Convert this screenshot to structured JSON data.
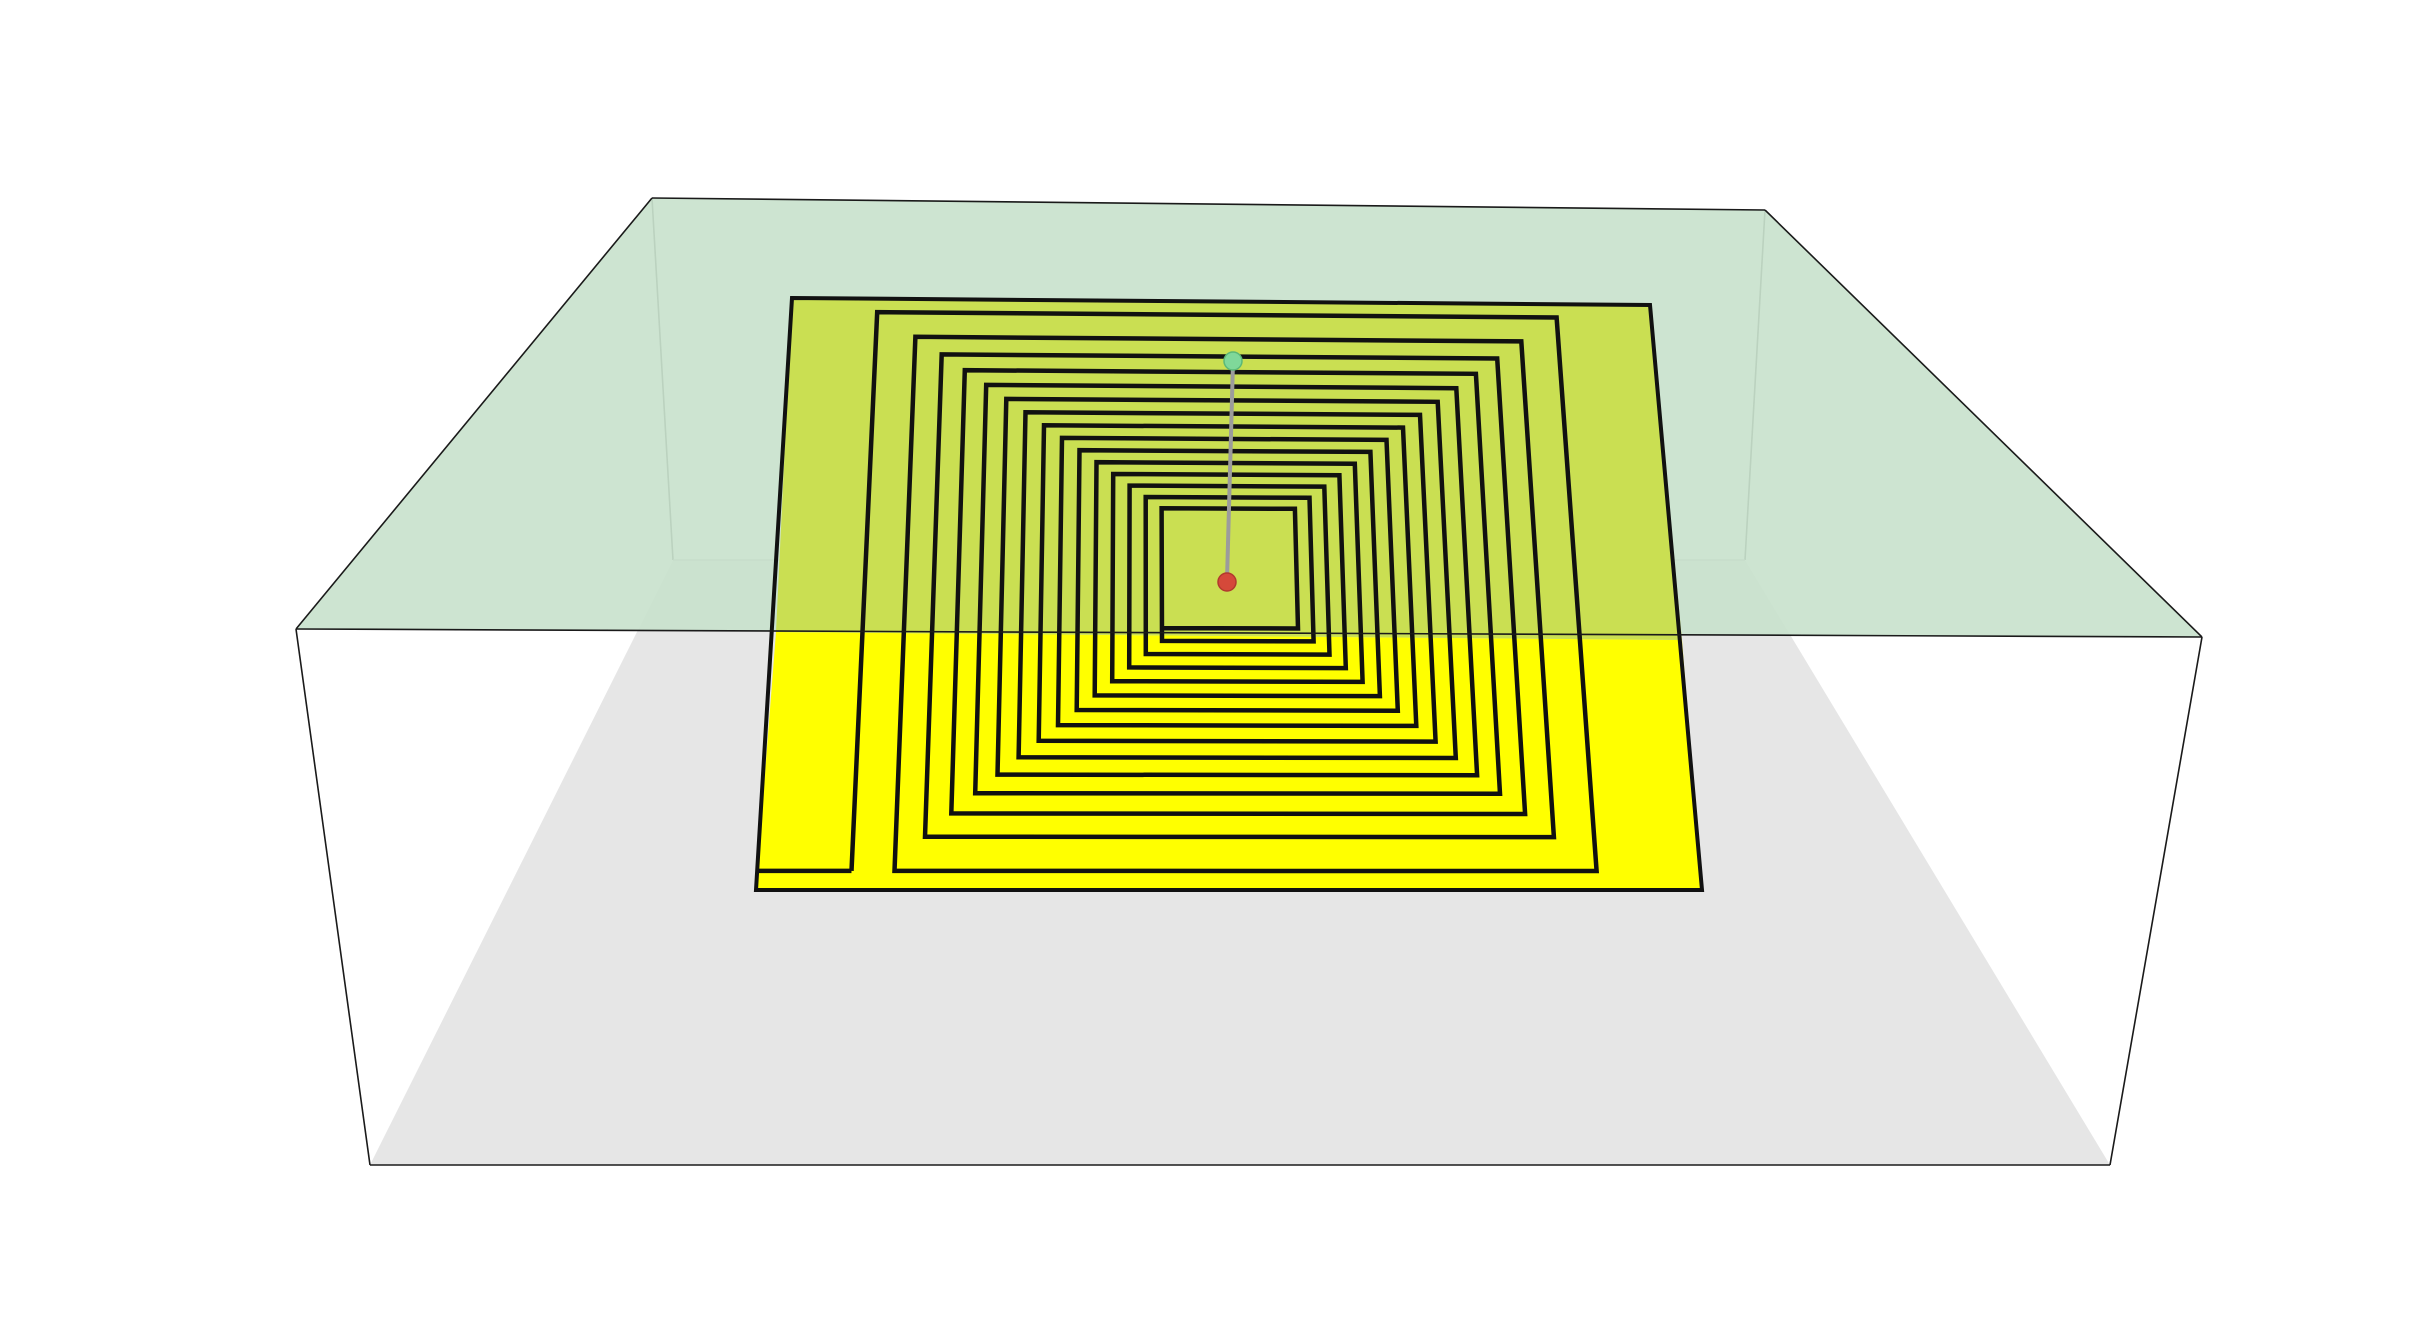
{
  "scene": {
    "colors": {
      "background": "#ffffff",
      "box_edge": "#1a1a1a",
      "top_face": "#c9e2cd",
      "floor": "#e6e6e6",
      "sheet_above": "#cadf52",
      "sheet_below": "#ffff00",
      "trace": "#111111",
      "probe_stem": "#9c9c9c",
      "probe_tip_top": "#7fd89a",
      "probe_tip_bottom": "#d5493a"
    },
    "spiral": {
      "turns": 14
    },
    "probe": {
      "icons": [
        "green-sphere-icon",
        "red-sphere-icon"
      ]
    }
  }
}
